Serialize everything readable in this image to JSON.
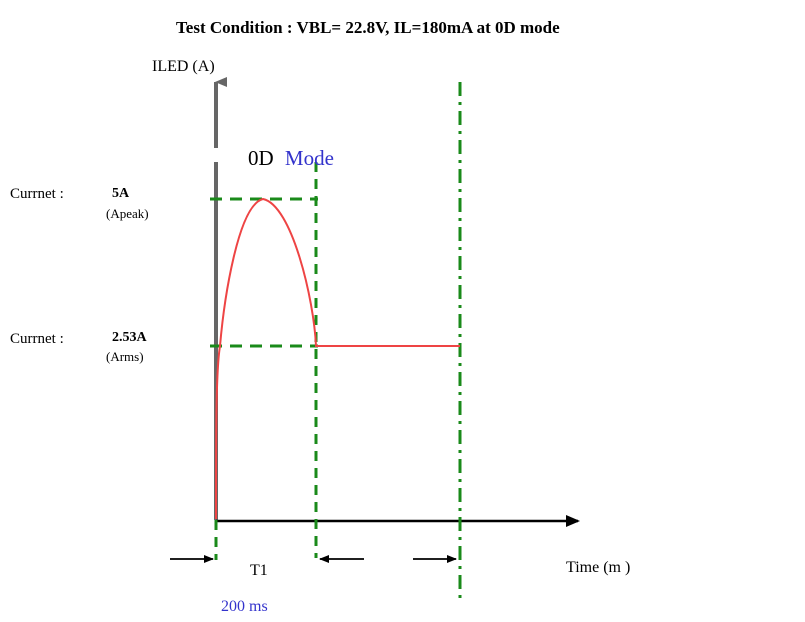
{
  "diagram": {
    "title": "Test Condition  : VBL= 22.8V,  IL=180mA  at 0D mode",
    "y_axis_label": "ILED (A)",
    "x_axis_label": "Time (m )",
    "mode_label_prefix": "0D",
    "mode_label_suffix": "Mode",
    "peak": {
      "label": "Currnet :",
      "value": "5A",
      "note": "(Apeak)"
    },
    "rms": {
      "label": "Currnet :",
      "value": "2.53A",
      "note": "(Arms)"
    },
    "interval_label": "T1",
    "duration": "200  ms",
    "colors": {
      "waveform": "#ee4444",
      "guides": "#1a8a1a",
      "axis": "#000000",
      "y_axis": "#666666",
      "accent_text": "#3333cc"
    }
  }
}
